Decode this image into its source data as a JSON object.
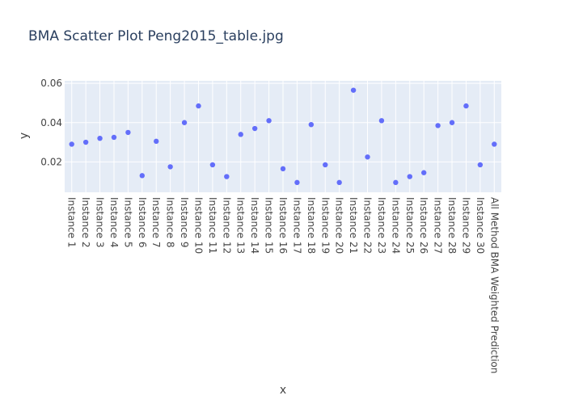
{
  "chart_data": {
    "type": "scatter",
    "title": "BMA Scatter Plot Peng2015_table.jpg",
    "xlabel": "x",
    "ylabel": "y",
    "categories": [
      "Instance 1",
      "Instance 2",
      "Instance 3",
      "Instance 4",
      "Instance 5",
      "Instance 6",
      "Instance 7",
      "Instance 8",
      "Instance 9",
      "Instance 10",
      "Instance 11",
      "Instance 12",
      "Instance 13",
      "Instance 14",
      "Instance 15",
      "Instance 16",
      "Instance 17",
      "Instance 18",
      "Instance 19",
      "Instance 20",
      "Instance 21",
      "Instance 22",
      "Instance 23",
      "Instance 24",
      "Instance 25",
      "Instance 26",
      "Instance 27",
      "Instance 28",
      "Instance 29",
      "Instance 30",
      "All Method BMA Weighted Prediction"
    ],
    "values": [
      0.029,
      0.03,
      0.032,
      0.0325,
      0.035,
      0.013,
      0.0305,
      0.0175,
      0.04,
      0.0485,
      0.0185,
      0.0125,
      0.034,
      0.037,
      0.041,
      0.0165,
      0.0095,
      0.039,
      0.0185,
      0.0095,
      0.0565,
      0.0225,
      0.041,
      0.0095,
      0.0125,
      0.0145,
      0.0385,
      0.04,
      0.0485,
      0.0185,
      0.029
    ],
    "yticks": [
      0.02,
      0.04,
      0.06
    ],
    "ytick_labels": [
      "0.02",
      "0.04",
      "0.06"
    ],
    "ylim": [
      0.0045,
      0.0613
    ],
    "grid": true,
    "marker_color": "#636efa",
    "plot_bg": "#e5ecf6"
  }
}
